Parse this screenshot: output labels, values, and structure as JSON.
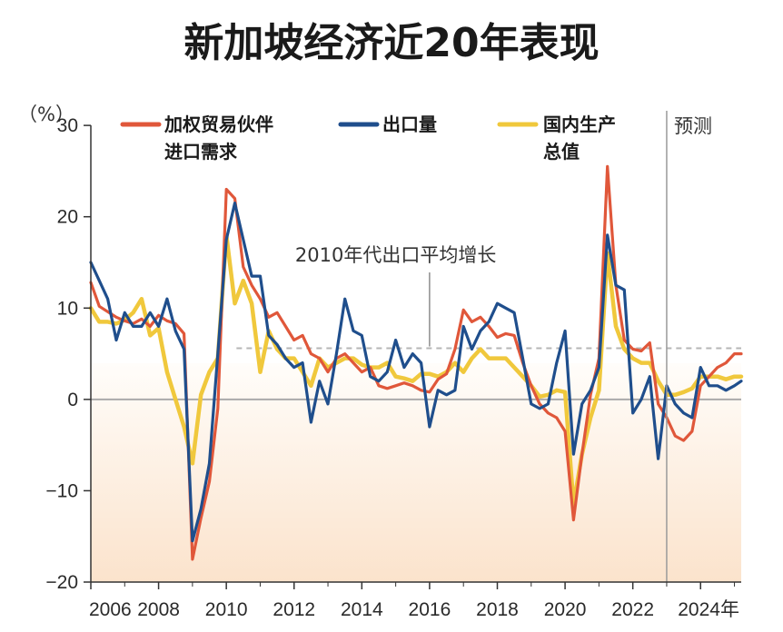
{
  "colors": {
    "trade_partner_demand": "#e0573a",
    "exports": "#1f4e8c",
    "gdp": "#f0c83c",
    "axis": "#333333",
    "zero_line": "#aaaaaa",
    "avg_line": "#b5b5b5",
    "forecast_line": "#9a9a9a",
    "shade_top": "#fffdfa",
    "shade_bottom": "#fbe3cc"
  },
  "chart_data": {
    "type": "line",
    "title": "新加坡经济近20年表现",
    "ylabel": "（%）",
    "xlabel": "",
    "ylim": [
      -20,
      32
    ],
    "xlim": [
      2006,
      2025.2
    ],
    "yticks": [
      -20,
      -10,
      0,
      10,
      20,
      30
    ],
    "ytick_labels": [
      "−20",
      "−10",
      "0",
      "10",
      "20",
      "30"
    ],
    "xticks": [
      2006,
      2008,
      2010,
      2012,
      2014,
      2016,
      2018,
      2020,
      2022,
      2024
    ],
    "xtick_labels": [
      "2006",
      "2008",
      "2010",
      "2012",
      "2014",
      "2016",
      "2018",
      "2020",
      "2022",
      "2024年"
    ],
    "legend_placement": "top",
    "forecast": {
      "x": 2023.0,
      "label": "预测"
    },
    "average_line": {
      "y": 5.6,
      "x_start": 2010.3,
      "x_end": 2025.2,
      "label_x": 2016.0,
      "label": "2010年代出口平均增长"
    },
    "series": [
      {
        "key": "trade_partner_demand",
        "name": "加权贸易伙伴\n进口需求",
        "x": [
          2006.0,
          2006.25,
          2006.5,
          2006.75,
          2007.0,
          2007.25,
          2007.5,
          2007.75,
          2008.0,
          2008.25,
          2008.5,
          2008.75,
          2009.0,
          2009.25,
          2009.5,
          2009.75,
          2010.0,
          2010.25,
          2010.5,
          2010.75,
          2011.0,
          2011.25,
          2011.5,
          2011.75,
          2012.0,
          2012.25,
          2012.5,
          2012.75,
          2013.0,
          2013.25,
          2013.5,
          2013.75,
          2014.0,
          2014.25,
          2014.5,
          2014.75,
          2015.0,
          2015.25,
          2015.5,
          2015.75,
          2016.0,
          2016.25,
          2016.5,
          2016.75,
          2017.0,
          2017.25,
          2017.5,
          2017.75,
          2018.0,
          2018.25,
          2018.5,
          2018.75,
          2019.0,
          2019.25,
          2019.5,
          2019.75,
          2020.0,
          2020.25,
          2020.5,
          2020.75,
          2021.0,
          2021.25,
          2021.5,
          2021.75,
          2022.0,
          2022.25,
          2022.5,
          2022.75,
          2023.0,
          2023.25,
          2023.5,
          2023.75,
          2024.0,
          2024.25,
          2024.5,
          2024.75,
          2025.0,
          2025.2
        ],
        "values": [
          12.8,
          10.2,
          9.6,
          9.0,
          8.6,
          8.3,
          8.8,
          8.0,
          9.2,
          8.6,
          8.3,
          7.2,
          -17.5,
          -13.0,
          -9.0,
          -1.0,
          23.0,
          22.0,
          14.5,
          12.5,
          11.0,
          9.0,
          9.5,
          8.0,
          6.5,
          7.0,
          5.0,
          4.5,
          3.0,
          4.5,
          5.0,
          4.0,
          3.0,
          3.5,
          1.5,
          1.2,
          1.5,
          1.8,
          1.5,
          1.0,
          0.8,
          2.2,
          2.8,
          5.5,
          9.8,
          8.5,
          9.0,
          8.0,
          6.8,
          7.2,
          7.0,
          4.0,
          1.5,
          -0.5,
          -1.5,
          -2.0,
          -3.5,
          -13.2,
          -6.0,
          0.5,
          4.5,
          25.5,
          12.5,
          6.5,
          5.5,
          5.3,
          6.2,
          -0.5,
          -2.0,
          -4.0,
          -4.5,
          -3.5,
          1.5,
          2.5,
          3.5,
          4.0,
          5.0,
          5.0
        ]
      },
      {
        "key": "exports",
        "name": "出口量",
        "x": [
          2006.0,
          2006.25,
          2006.5,
          2006.75,
          2007.0,
          2007.25,
          2007.5,
          2007.75,
          2008.0,
          2008.25,
          2008.5,
          2008.75,
          2009.0,
          2009.25,
          2009.5,
          2009.75,
          2010.0,
          2010.25,
          2010.5,
          2010.75,
          2011.0,
          2011.25,
          2011.5,
          2011.75,
          2012.0,
          2012.25,
          2012.5,
          2012.75,
          2013.0,
          2013.25,
          2013.5,
          2013.75,
          2014.0,
          2014.25,
          2014.5,
          2014.75,
          2015.0,
          2015.25,
          2015.5,
          2015.75,
          2016.0,
          2016.25,
          2016.5,
          2016.75,
          2017.0,
          2017.25,
          2017.5,
          2017.75,
          2018.0,
          2018.25,
          2018.5,
          2018.75,
          2019.0,
          2019.25,
          2019.5,
          2019.75,
          2020.0,
          2020.25,
          2020.5,
          2020.75,
          2021.0,
          2021.25,
          2021.5,
          2021.75,
          2022.0,
          2022.25,
          2022.5,
          2022.75,
          2023.0,
          2023.25,
          2023.5,
          2023.75,
          2024.0,
          2024.25,
          2024.5,
          2024.75,
          2025.0,
          2025.2
        ],
        "values": [
          15.0,
          13.0,
          11.0,
          6.5,
          9.5,
          8.0,
          8.0,
          9.5,
          8.0,
          11.0,
          7.5,
          5.5,
          -15.5,
          -12.0,
          -7.0,
          5.0,
          17.5,
          21.5,
          17.5,
          13.5,
          13.5,
          7.0,
          6.0,
          4.5,
          3.5,
          4.0,
          -2.5,
          2.0,
          -0.5,
          5.0,
          11.0,
          7.5,
          7.0,
          2.5,
          2.0,
          3.0,
          6.5,
          3.5,
          5.0,
          4.0,
          -3.0,
          1.0,
          0.5,
          1.0,
          8.0,
          5.5,
          7.5,
          8.5,
          10.5,
          10.0,
          9.5,
          4.5,
          -0.5,
          -1.0,
          -0.5,
          4.0,
          7.5,
          -6.0,
          -0.5,
          1.0,
          3.5,
          18.0,
          12.5,
          12.0,
          -1.5,
          0.0,
          2.5,
          -6.5,
          1.5,
          -0.5,
          -1.5,
          -2.0,
          3.5,
          1.5,
          1.5,
          1.0,
          1.5,
          2.0
        ]
      },
      {
        "key": "gdp",
        "name": "国内生产\n总值",
        "x": [
          2006.0,
          2006.25,
          2006.5,
          2006.75,
          2007.0,
          2007.25,
          2007.5,
          2007.75,
          2008.0,
          2008.25,
          2008.5,
          2008.75,
          2009.0,
          2009.25,
          2009.5,
          2009.75,
          2010.0,
          2010.25,
          2010.5,
          2010.75,
          2011.0,
          2011.25,
          2011.5,
          2011.75,
          2012.0,
          2012.25,
          2012.5,
          2012.75,
          2013.0,
          2013.25,
          2013.5,
          2013.75,
          2014.0,
          2014.25,
          2014.5,
          2014.75,
          2015.0,
          2015.25,
          2015.5,
          2015.75,
          2016.0,
          2016.25,
          2016.5,
          2016.75,
          2017.0,
          2017.25,
          2017.5,
          2017.75,
          2018.0,
          2018.25,
          2018.5,
          2018.75,
          2019.0,
          2019.25,
          2019.5,
          2019.75,
          2020.0,
          2020.25,
          2020.5,
          2020.75,
          2021.0,
          2021.25,
          2021.5,
          2021.75,
          2022.0,
          2022.25,
          2022.5,
          2022.75,
          2023.0,
          2023.25,
          2023.5,
          2023.75,
          2024.0,
          2024.25,
          2024.5,
          2024.75,
          2025.0,
          2025.2
        ],
        "values": [
          10.0,
          8.5,
          8.5,
          8.3,
          8.7,
          9.5,
          11.0,
          7.0,
          7.8,
          3.0,
          0.0,
          -3.0,
          -7.0,
          0.5,
          3.0,
          4.5,
          18.0,
          10.5,
          13.0,
          10.5,
          3.0,
          7.5,
          5.5,
          4.5,
          4.5,
          3.0,
          1.5,
          4.5,
          3.5,
          4.0,
          4.5,
          4.5,
          3.8,
          3.5,
          3.5,
          4.0,
          2.5,
          2.3,
          2.0,
          2.8,
          2.8,
          2.5,
          3.0,
          4.0,
          3.0,
          4.5,
          5.5,
          4.5,
          4.5,
          4.5,
          3.5,
          2.5,
          1.5,
          0.3,
          0.5,
          1.0,
          0.8,
          -11.5,
          -6.0,
          -2.0,
          1.0,
          16.0,
          8.0,
          5.5,
          4.5,
          4.0,
          4.0,
          2.0,
          0.5,
          0.5,
          0.8,
          1.2,
          2.5,
          2.5,
          2.5,
          2.2,
          2.5,
          2.5
        ]
      }
    ]
  }
}
